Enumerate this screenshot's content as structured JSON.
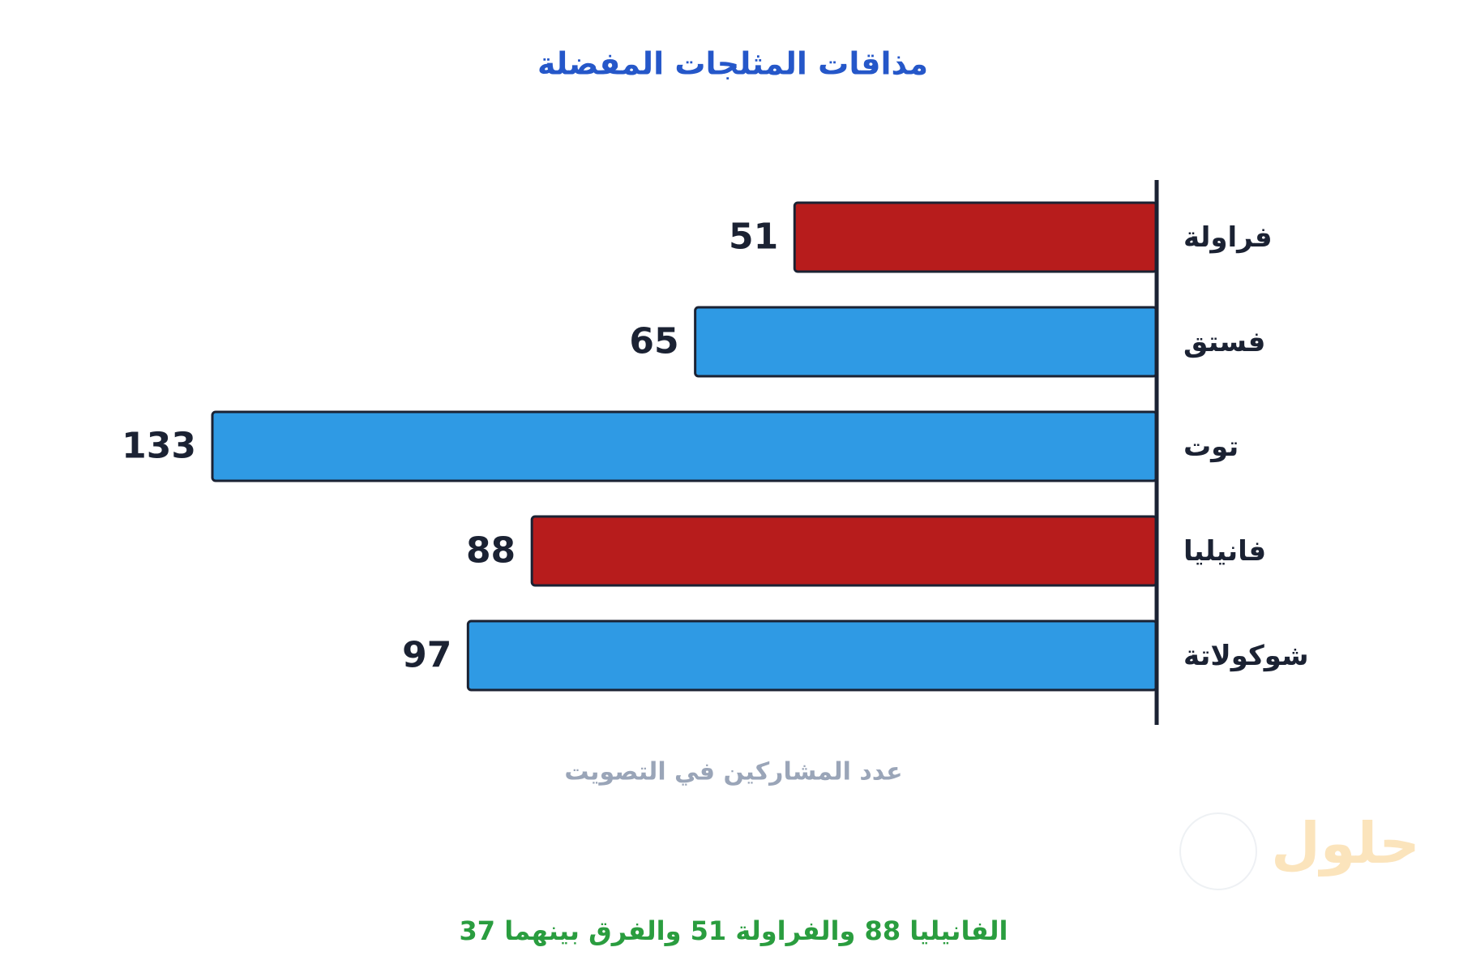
{
  "chart_data": {
    "type": "bar",
    "orientation": "horizontal",
    "title": "مذاقات المثلجات المفضلة",
    "x_label": "عدد المشاركين في التصويت",
    "annotation": "الفانيليا 88 والفراولة 51 والفرق بينهما 37",
    "watermark": "حلول",
    "categories": [
      "فراولة",
      "فستق",
      "توت",
      "فانيليا",
      "شوكولاتة"
    ],
    "values": [
      51,
      65,
      133,
      88,
      97
    ],
    "colors": [
      "#b71c1c",
      "#2f9ae4",
      "#2f9ae4",
      "#b71c1c",
      "#2f9ae4"
    ],
    "grid": false
  }
}
